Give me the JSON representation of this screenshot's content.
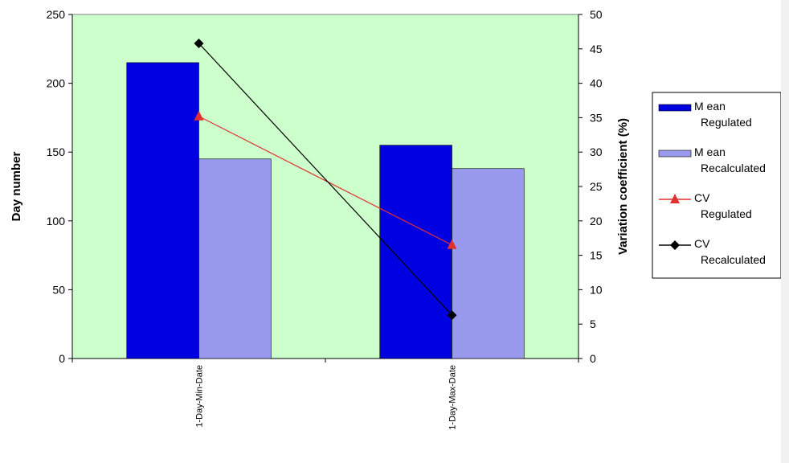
{
  "chart_data": {
    "type": "bar",
    "categories": [
      "1-Day-Min-Date",
      "1-Day-Max-Date"
    ],
    "series": [
      {
        "name": "Mean Regulated",
        "kind": "bar",
        "axis": "left",
        "color": "#0000e0",
        "values": [
          215,
          155
        ]
      },
      {
        "name": "Mean Recalculated",
        "kind": "bar",
        "axis": "left",
        "color": "#9999ee",
        "values": [
          145,
          138
        ]
      },
      {
        "name": "CV Regulated",
        "kind": "line",
        "axis": "right",
        "color": "#e03030",
        "marker": "triangle",
        "values": [
          35.2,
          16.5
        ]
      },
      {
        "name": "CV Recalculated",
        "kind": "line",
        "axis": "right",
        "color": "#000000",
        "marker": "diamond",
        "values": [
          45.8,
          6.3
        ]
      }
    ],
    "ylabel": "Day number",
    "ylabel_right": "Variation coefficient (%)",
    "ylim": [
      0,
      250
    ],
    "ylim_right": [
      0,
      50
    ],
    "yticks": [
      "0",
      "50",
      "100",
      "150",
      "200",
      "250"
    ],
    "yticks_right": [
      "0",
      "5",
      "10",
      "15",
      "20",
      "25",
      "30",
      "35",
      "40",
      "45",
      "50"
    ],
    "legend": [
      {
        "line1": "M ean",
        "line2": "Regulated"
      },
      {
        "line1": "M ean",
        "line2": "Recalculated"
      },
      {
        "line1": "CV",
        "line2": "Regulated"
      },
      {
        "line1": "CV",
        "line2": "Recalculated"
      }
    ],
    "legend_position": "right",
    "plot_background": "#ccffcc",
    "grid": false
  }
}
